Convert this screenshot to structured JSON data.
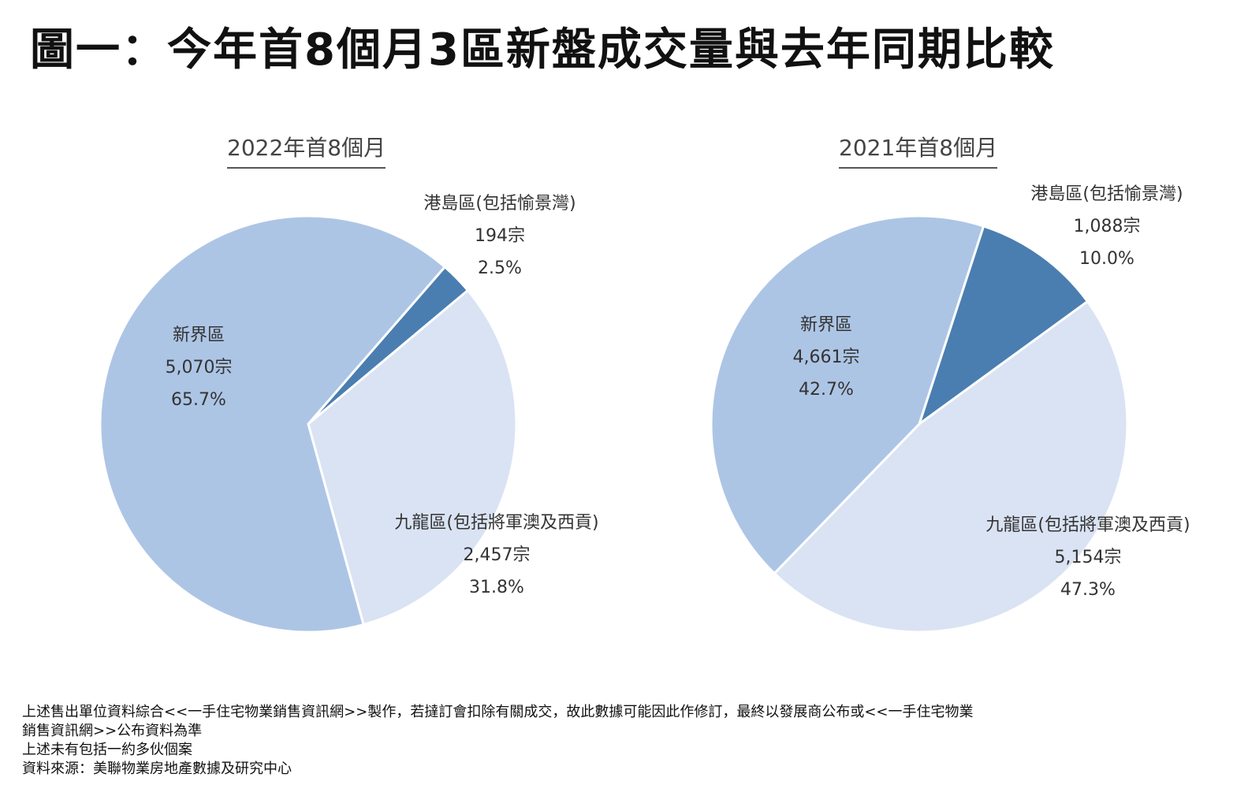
{
  "title": "圖一：今年首8個月3區新盤成交量與去年同期比較",
  "chart_data": [
    {
      "type": "pie",
      "title": "2022年首8個月",
      "slices": [
        {
          "label": "港島區(包括愉景灣)",
          "count": "194宗",
          "value": 194,
          "percent": "2.5%",
          "color": "#4a7eb0"
        },
        {
          "label": "九龍區(包括將軍澳及西貢)",
          "count": "2,457宗",
          "value": 2457,
          "percent": "31.8%",
          "color": "#dae3f3"
        },
        {
          "label": "新界區",
          "count": "5,070宗",
          "value": 5070,
          "percent": "65.7%",
          "color": "#adc5e5"
        }
      ]
    },
    {
      "type": "pie",
      "title": "2021年首8個月",
      "slices": [
        {
          "label": "港島區(包括愉景灣)",
          "count": "1,088宗",
          "value": 1088,
          "percent": "10.0%",
          "color": "#4a7eb0"
        },
        {
          "label": "九龍區(包括將軍澳及西貢)",
          "count": "5,154宗",
          "value": 5154,
          "percent": "47.3%",
          "color": "#dae3f3"
        },
        {
          "label": "新界區",
          "count": "4,661宗",
          "value": 4661,
          "percent": "42.7%",
          "color": "#adc5e5"
        }
      ]
    }
  ],
  "footnotes": [
    "上述售出單位資料綜合<<一手住宅物業銷售資訊網>>製作，若撻訂會扣除有關成交，故此數據可能因此作修訂，最終以發展商公布或<<一手住宅物業",
    "銷售資訊網>>公布資料為準",
    "上述未有包括一約多伙個案",
    "資料來源：美聯物業房地產數據及研究中心"
  ]
}
